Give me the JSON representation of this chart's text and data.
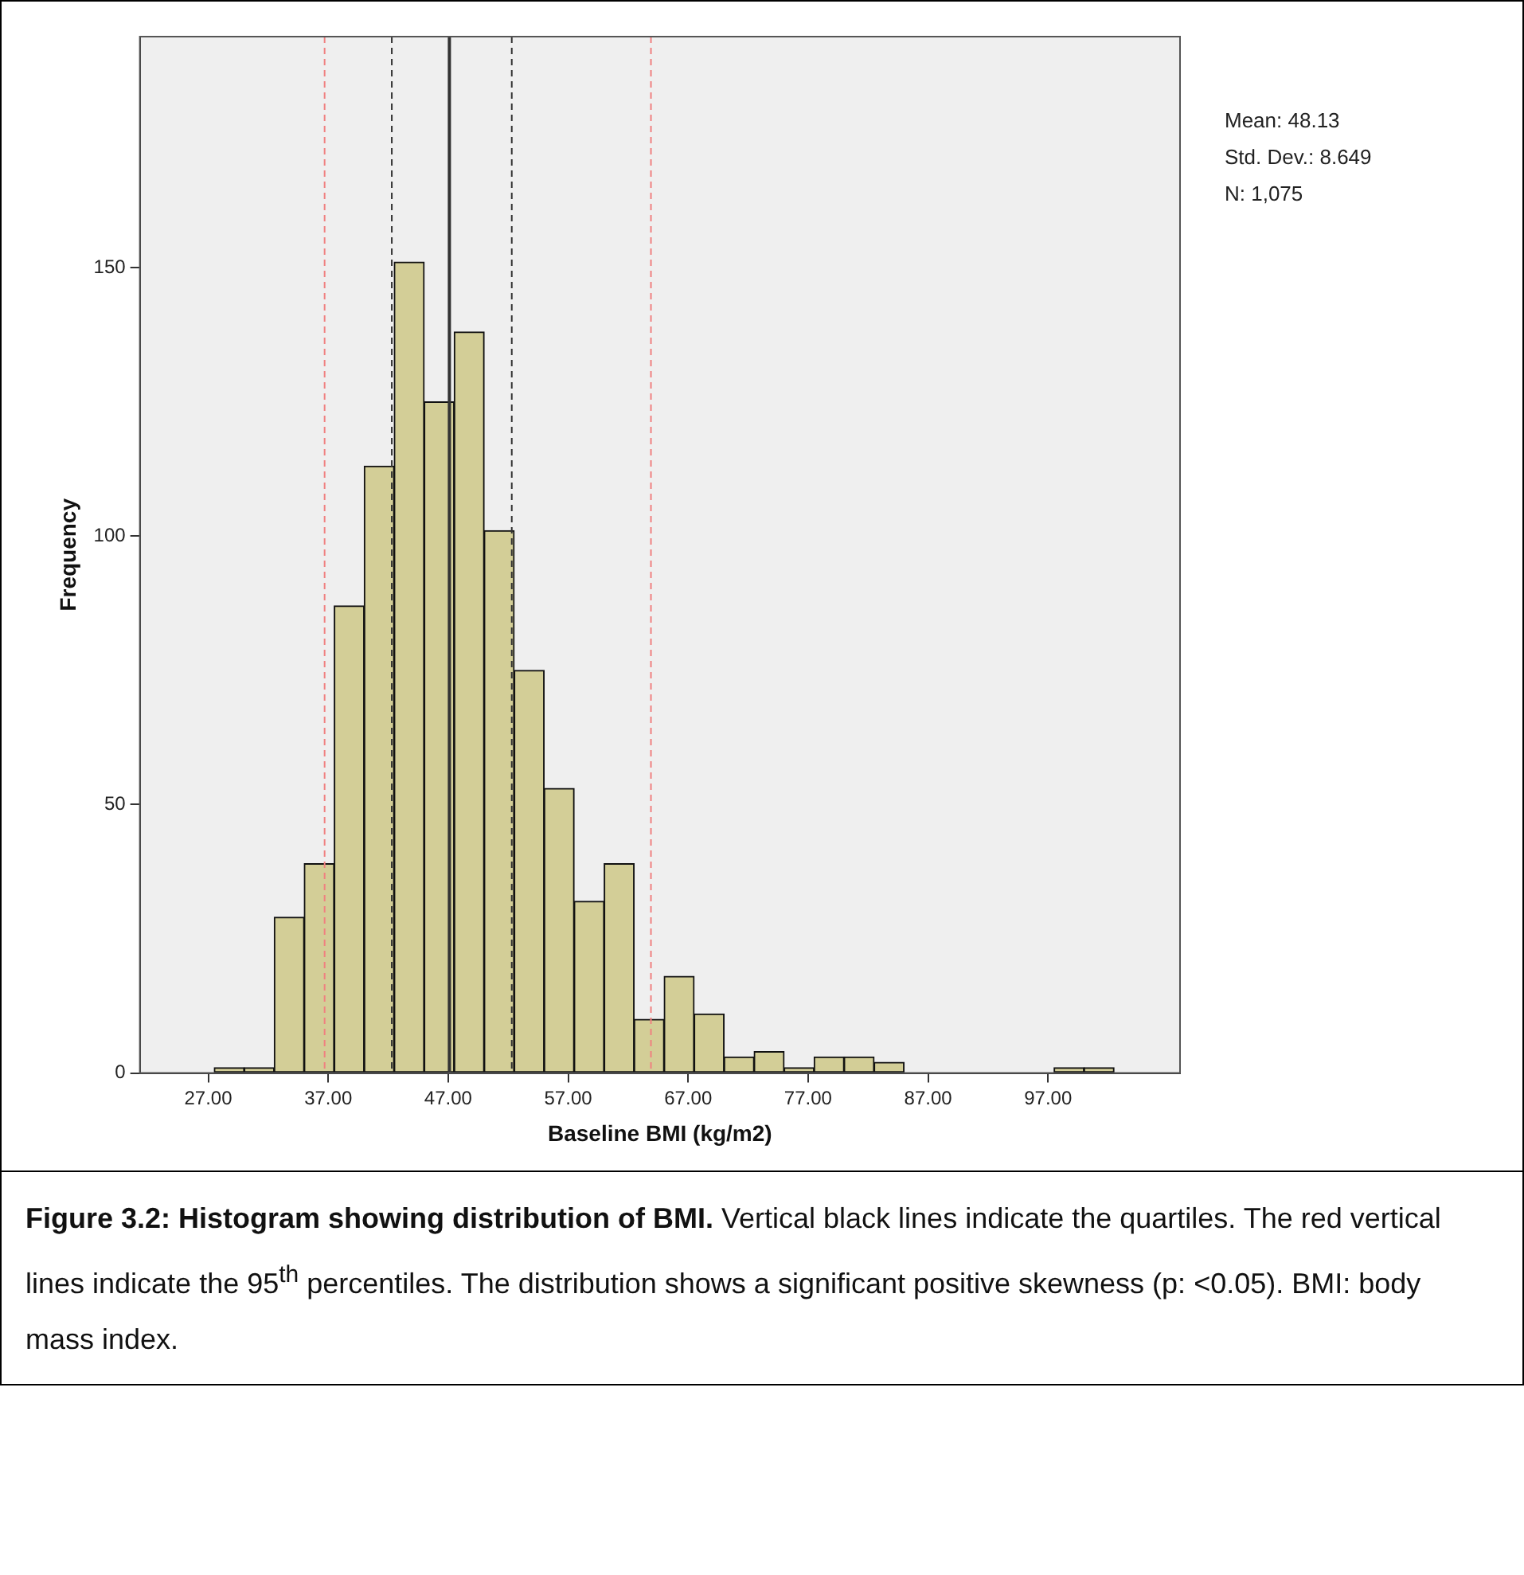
{
  "chart_data": {
    "type": "histogram",
    "xlabel": "Baseline BMI (kg/m2)",
    "ylabel": "Frequency",
    "bins": [
      27.5,
      30,
      32.5,
      35,
      37.5,
      40,
      42.5,
      45,
      47.5,
      50,
      52.5,
      55,
      57.5,
      60,
      62.5,
      65,
      67.5,
      70,
      72.5,
      75,
      77.5,
      80,
      82.5,
      85,
      87.5,
      90,
      92.5,
      95,
      97.5,
      100,
      102.5
    ],
    "values": [
      1,
      1,
      29,
      39,
      87,
      113,
      151,
      125,
      138,
      101,
      75,
      53,
      32,
      39,
      10,
      18,
      11,
      3,
      4,
      1,
      3,
      3,
      2,
      0,
      0,
      0,
      0,
      0,
      1,
      1
    ],
    "color": "#d3ce97",
    "xlim": [
      21.3,
      108
    ],
    "ylim": [
      0,
      193
    ],
    "xticks": [
      {
        "value": 27,
        "label": "27.00"
      },
      {
        "value": 37,
        "label": "37.00"
      },
      {
        "value": 47,
        "label": "47.00"
      },
      {
        "value": 57,
        "label": "57.00"
      },
      {
        "value": 67,
        "label": "67.00"
      },
      {
        "value": 77,
        "label": "77.00"
      },
      {
        "value": 87,
        "label": "87.00"
      },
      {
        "value": 97,
        "label": "97.00"
      }
    ],
    "yticks": [
      0,
      50,
      100,
      150
    ],
    "grid": false,
    "legend": false,
    "ref_lines": [
      {
        "axis": "x",
        "value": 36.7,
        "color": "#f08080",
        "line_style": "dashed"
      },
      {
        "axis": "x",
        "value": 42.3,
        "color": "#333333",
        "line_style": "dashed"
      },
      {
        "axis": "x",
        "value": 47.1,
        "color": "#333333",
        "line_style": "solid"
      },
      {
        "axis": "x",
        "value": 52.3,
        "color": "#333333",
        "line_style": "dashed"
      },
      {
        "axis": "x",
        "value": 63.9,
        "color": "#f08080",
        "line_style": "dashed"
      }
    ],
    "annotations": [
      "Mean: 48.13",
      "Std. Dev.: 8.649",
      "N: 1,075",
      "Figure 3.2: Histogram showing distribution of BMI.",
      "Vertical black lines indicate the quartiles. The red vertical lines indicate the 95$^{th}$ percentiles. The distribution shows a significant positive skewness (p: <0.05). BMI: body mass index."
    ]
  }
}
